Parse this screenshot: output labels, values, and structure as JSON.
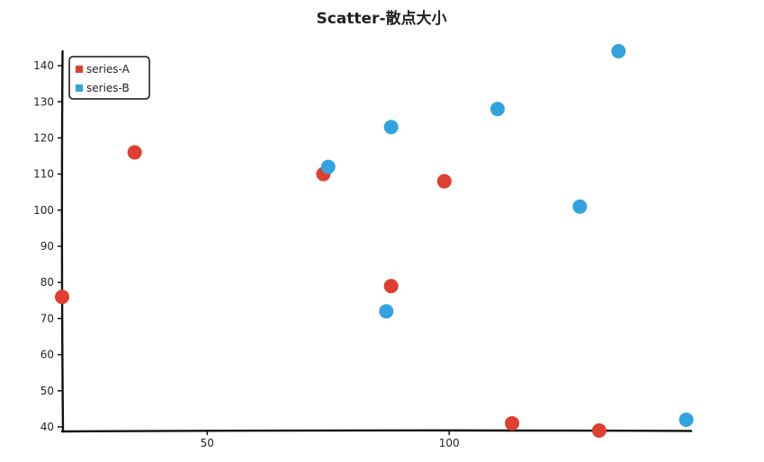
{
  "chart_data": {
    "type": "scatter",
    "title": "Scatter-散点大小",
    "xlabel": "",
    "ylabel": "",
    "xlim": [
      20,
      150
    ],
    "ylim": [
      39,
      144
    ],
    "xticks": [
      50,
      100
    ],
    "yticks": [
      40,
      50,
      60,
      70,
      80,
      90,
      100,
      110,
      120,
      130,
      140
    ],
    "legend": "top-left",
    "grid": false,
    "series": [
      {
        "name": "series-A",
        "color": "#de3f2f",
        "points": [
          {
            "x": 20,
            "y": 76
          },
          {
            "x": 35,
            "y": 116
          },
          {
            "x": 74,
            "y": 110
          },
          {
            "x": 88,
            "y": 79
          },
          {
            "x": 99,
            "y": 108
          },
          {
            "x": 113,
            "y": 41
          },
          {
            "x": 131,
            "y": 39
          }
        ]
      },
      {
        "name": "series-B",
        "color": "#33a3e0",
        "points": [
          {
            "x": 75,
            "y": 112
          },
          {
            "x": 87,
            "y": 72
          },
          {
            "x": 88,
            "y": 123
          },
          {
            "x": 110,
            "y": 128
          },
          {
            "x": 127,
            "y": 101
          },
          {
            "x": 135,
            "y": 144
          },
          {
            "x": 149,
            "y": 42
          }
        ]
      }
    ]
  }
}
